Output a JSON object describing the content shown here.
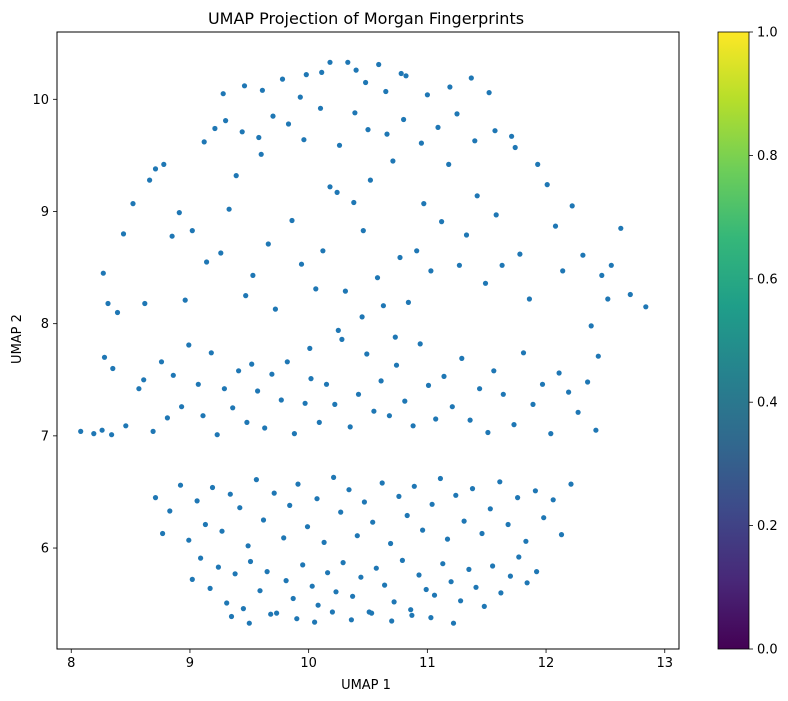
{
  "chart_data": {
    "type": "scatter",
    "title": "UMAP Projection of Morgan Fingerprints",
    "xlabel": "UMAP 1",
    "ylabel": "UMAP 2",
    "xlim": [
      7.88,
      13.12
    ],
    "ylim": [
      5.1,
      10.6
    ],
    "xticks": [
      "8",
      "9",
      "10",
      "11",
      "12",
      "13"
    ],
    "yticks": [
      "6",
      "7",
      "8",
      "9",
      "10"
    ],
    "grid": false,
    "marker_color": "#1f77b4",
    "colorbar": {
      "colormap": "viridis",
      "range": [
        0.0,
        1.0
      ],
      "ticks": [
        "0.0",
        "0.2",
        "0.4",
        "0.6",
        "0.8",
        "1.0"
      ],
      "colors": [
        "#440154",
        "#482878",
        "#3e4989",
        "#31688e",
        "#26828e",
        "#1f9e89",
        "#35b779",
        "#6ece58",
        "#b5de2b",
        "#fde725"
      ]
    },
    "series": [
      {
        "x": [
          8.08,
          8.19,
          8.26,
          8.31,
          8.27,
          8.39,
          8.35,
          8.44,
          8.28,
          8.52,
          8.62,
          8.66,
          8.71,
          8.78,
          8.85,
          8.91,
          8.96,
          9.02,
          9.14,
          9.26,
          9.33,
          9.39,
          9.47,
          9.53,
          9.6,
          9.66,
          9.72,
          9.86,
          9.94,
          10.06,
          10.12,
          10.18,
          10.24,
          10.31,
          10.38,
          10.46,
          10.52,
          10.58,
          10.63,
          10.71,
          10.77,
          10.84,
          10.91,
          10.97,
          11.03,
          11.12,
          11.18,
          11.27,
          11.33,
          11.42,
          11.49,
          11.58,
          11.63,
          11.71,
          11.78,
          11.86,
          11.93,
          12.01,
          12.08,
          12.14,
          12.22,
          12.31,
          12.38,
          12.44,
          12.55,
          12.63,
          12.71,
          12.84,
          12.52,
          12.47,
          8.34,
          8.46,
          8.57,
          8.61,
          8.69,
          8.76,
          8.81,
          8.86,
          8.93,
          8.99,
          9.07,
          9.11,
          9.18,
          9.23,
          9.29,
          9.36,
          9.41,
          9.48,
          9.52,
          9.57,
          9.63,
          9.69,
          9.77,
          9.82,
          9.88,
          9.97,
          10.02,
          10.09,
          10.15,
          10.22,
          10.28,
          10.35,
          10.42,
          10.49,
          10.55,
          10.61,
          10.68,
          10.74,
          10.81,
          10.88,
          10.94,
          11.01,
          11.07,
          11.14,
          11.21,
          11.29,
          11.36,
          11.44,
          11.51,
          11.56,
          11.64,
          11.73,
          11.81,
          11.89,
          11.97,
          12.04,
          12.11,
          12.19,
          12.27,
          12.35,
          12.42,
          8.71,
          8.77,
          8.83,
          8.92,
          8.99,
          9.06,
          9.13,
          9.19,
          9.27,
          9.34,
          9.42,
          9.49,
          9.56,
          9.62,
          9.71,
          9.79,
          9.84,
          9.91,
          9.99,
          10.07,
          10.13,
          10.21,
          10.27,
          10.34,
          10.41,
          10.47,
          10.54,
          10.62,
          10.69,
          10.76,
          10.83,
          10.89,
          10.96,
          11.04,
          11.11,
          11.17,
          11.24,
          11.31,
          11.38,
          11.46,
          11.53,
          11.61,
          11.68,
          11.76,
          11.83,
          11.91,
          11.98,
          12.06,
          12.13,
          12.21,
          9.02,
          9.09,
          9.17,
          9.24,
          9.31,
          9.38,
          9.45,
          9.51,
          9.59,
          9.65,
          9.73,
          9.81,
          9.87,
          9.95,
          10.03,
          10.08,
          10.16,
          10.23,
          10.29,
          10.37,
          10.44,
          10.51,
          10.57,
          10.64,
          10.72,
          10.79,
          10.86,
          10.93,
          10.99,
          11.06,
          11.13,
          11.2,
          11.28,
          11.35,
          11.41,
          11.48,
          11.55,
          11.62,
          11.7,
          11.77,
          11.84,
          11.92,
          9.12,
          9.21,
          9.3,
          9.44,
          9.58,
          9.7,
          9.83,
          9.96,
          10.1,
          10.26,
          10.39,
          10.5,
          10.66,
          10.8,
          10.95,
          11.09,
          11.25,
          11.4,
          11.57,
          11.74,
          9.28,
          9.46,
          9.61,
          9.78,
          9.93,
          10.11,
          10.33,
          10.48,
          10.65,
          10.82,
          11.0,
          11.19,
          11.37,
          11.52,
          9.35,
          9.5,
          9.68,
          9.9,
          10.05,
          10.2,
          10.36,
          10.53,
          10.7,
          10.87,
          11.03,
          11.22,
          9.98,
          10.18,
          10.4,
          10.59,
          10.78,
          10.01,
          10.25,
          10.45,
          10.73
        ],
        "y": [
          7.04,
          7.02,
          7.05,
          8.18,
          8.45,
          8.1,
          7.6,
          8.8,
          7.7,
          9.07,
          8.18,
          9.28,
          9.38,
          9.42,
          8.78,
          8.99,
          8.21,
          8.83,
          8.55,
          8.63,
          9.02,
          9.32,
          8.25,
          8.43,
          9.51,
          8.71,
          8.13,
          8.92,
          8.53,
          8.31,
          8.65,
          9.22,
          9.17,
          8.29,
          9.08,
          8.83,
          9.28,
          8.41,
          8.16,
          9.45,
          8.59,
          8.19,
          8.65,
          9.07,
          8.47,
          8.91,
          9.42,
          8.52,
          8.79,
          9.14,
          8.36,
          8.97,
          8.52,
          9.67,
          8.62,
          8.22,
          9.42,
          9.24,
          8.87,
          8.47,
          9.05,
          8.61,
          7.98,
          7.71,
          8.52,
          8.85,
          8.26,
          8.15,
          8.22,
          8.43,
          7.01,
          7.09,
          7.42,
          7.5,
          7.04,
          7.66,
          7.16,
          7.54,
          7.26,
          7.81,
          7.46,
          7.18,
          7.74,
          7.01,
          7.42,
          7.25,
          7.58,
          7.12,
          7.64,
          7.4,
          7.07,
          7.55,
          7.32,
          7.66,
          7.02,
          7.29,
          7.51,
          7.12,
          7.46,
          7.28,
          7.86,
          7.08,
          7.37,
          7.73,
          7.22,
          7.49,
          7.18,
          7.63,
          7.31,
          7.09,
          7.82,
          7.45,
          7.15,
          7.53,
          7.26,
          7.69,
          7.14,
          7.42,
          7.03,
          7.58,
          7.37,
          7.1,
          7.74,
          7.28,
          7.46,
          7.02,
          7.56,
          7.39,
          7.21,
          7.48,
          7.05,
          6.45,
          6.13,
          6.33,
          6.56,
          6.07,
          6.42,
          6.21,
          6.54,
          6.15,
          6.48,
          6.36,
          6.02,
          6.61,
          6.25,
          6.49,
          6.09,
          6.38,
          6.57,
          6.19,
          6.44,
          6.05,
          6.63,
          6.32,
          6.52,
          6.11,
          6.41,
          6.23,
          6.58,
          6.04,
          6.46,
          6.29,
          6.55,
          6.16,
          6.39,
          6.62,
          6.08,
          6.47,
          6.24,
          6.53,
          6.13,
          6.35,
          6.59,
          6.21,
          6.45,
          6.06,
          6.51,
          6.27,
          6.43,
          6.12,
          6.57,
          5.72,
          5.91,
          5.64,
          5.83,
          5.51,
          5.77,
          5.46,
          5.88,
          5.62,
          5.79,
          5.42,
          5.71,
          5.55,
          5.85,
          5.66,
          5.49,
          5.78,
          5.61,
          5.87,
          5.57,
          5.74,
          5.43,
          5.82,
          5.67,
          5.52,
          5.89,
          5.45,
          5.76,
          5.63,
          5.58,
          5.86,
          5.7,
          5.53,
          5.81,
          5.65,
          5.48,
          5.84,
          5.6,
          5.75,
          5.92,
          5.69,
          5.79,
          9.62,
          9.74,
          9.81,
          9.71,
          9.66,
          9.85,
          9.78,
          9.64,
          9.92,
          9.59,
          9.88,
          9.73,
          9.69,
          9.82,
          9.61,
          9.75,
          9.87,
          9.63,
          9.72,
          9.57,
          10.05,
          10.12,
          10.08,
          10.18,
          10.02,
          10.24,
          10.33,
          10.15,
          10.07,
          10.21,
          10.04,
          10.11,
          10.19,
          10.06,
          5.39,
          5.33,
          5.41,
          5.37,
          5.34,
          5.43,
          5.36,
          5.42,
          5.35,
          5.4,
          5.38,
          5.33,
          10.22,
          10.33,
          10.26,
          10.31,
          10.23,
          7.78,
          7.94,
          8.06,
          7.88
        ],
        "color": "#1f77b4"
      }
    ]
  }
}
